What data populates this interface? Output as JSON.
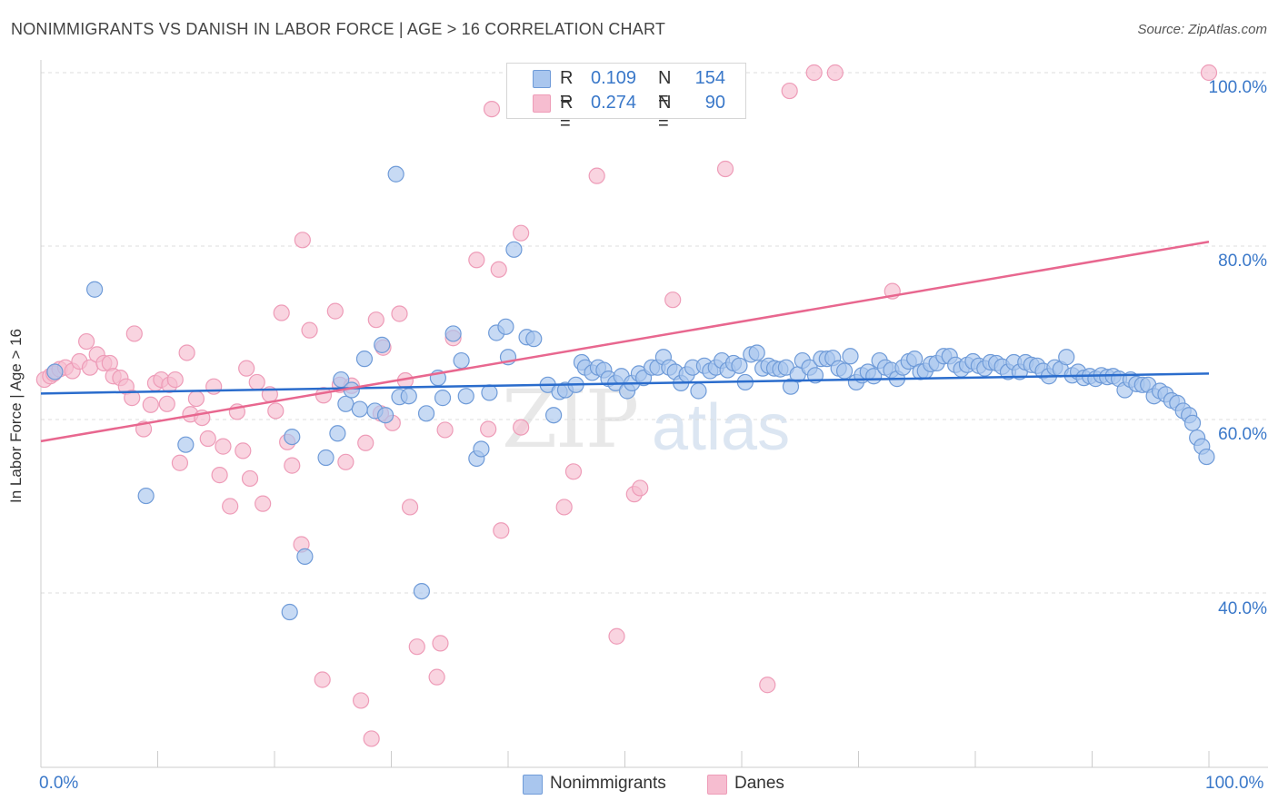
{
  "title": "NONIMMIGRANTS VS DANISH IN LABOR FORCE | AGE > 16 CORRELATION CHART",
  "source": "Source: ZipAtlas.com",
  "watermark": {
    "zip": "ZIP",
    "atlas": "atlas"
  },
  "legend": {
    "rows": [
      {
        "r_label": "R =",
        "r_value": "0.109",
        "n_label": "N =",
        "n_value": "154"
      },
      {
        "r_label": "R =",
        "r_value": "0.274",
        "n_label": "N =",
        "n_value": "90"
      }
    ]
  },
  "bottom_legend": [
    "Nonimmigrants",
    "Danes"
  ],
  "colors": {
    "blue_fill": "#a9c6ee",
    "blue_stroke": "#6f9bd8",
    "blue_line": "#2a6ccc",
    "pink_fill": "#f6bdd0",
    "pink_stroke": "#ee9cb8",
    "pink_line": "#e8678f",
    "tick_text": "#3a78c9",
    "grid": "#dddddd"
  },
  "chart_data": {
    "type": "scatter",
    "title": "NONIMMIGRANTS VS DANISH IN LABOR FORCE | AGE > 16 CORRELATION CHART",
    "ylabel": "In Labor Force | Age > 16",
    "xlim": [
      0,
      100
    ],
    "ylim": [
      20,
      102
    ],
    "x_ticks": [
      "0.0%",
      "100.0%"
    ],
    "y_ticks": [
      {
        "value": 100,
        "label": "100.0%"
      },
      {
        "value": 80,
        "label": "80.0%"
      },
      {
        "value": 60,
        "label": "60.0%"
      },
      {
        "value": 40,
        "label": "40.0%"
      }
    ],
    "grid": true,
    "series": [
      {
        "name": "Nonimmigrants",
        "r": 0.109,
        "n": 154,
        "trend": [
          [
            0,
            63.0
          ],
          [
            100,
            65.3
          ]
        ],
        "points": [
          [
            1.2,
            65.5
          ],
          [
            4.6,
            75.0
          ],
          [
            9,
            51.2
          ],
          [
            12.4,
            57.1
          ],
          [
            21.3,
            37.8
          ],
          [
            22.6,
            44.2
          ],
          [
            21.5,
            58.0
          ],
          [
            24.4,
            55.6
          ],
          [
            25.4,
            58.4
          ],
          [
            25.7,
            64.6
          ],
          [
            26.1,
            61.8
          ],
          [
            26.6,
            63.4
          ],
          [
            27.3,
            61.2
          ],
          [
            27.7,
            67.0
          ],
          [
            28.6,
            61.0
          ],
          [
            29.2,
            68.6
          ],
          [
            29.5,
            60.5
          ],
          [
            30.4,
            88.3
          ],
          [
            30.7,
            62.6
          ],
          [
            31.5,
            62.7
          ],
          [
            32.6,
            40.2
          ],
          [
            33,
            60.7
          ],
          [
            34,
            64.8
          ],
          [
            34.4,
            62.5
          ],
          [
            35.3,
            69.9
          ],
          [
            36,
            66.8
          ],
          [
            36.4,
            62.7
          ],
          [
            37.3,
            55.5
          ],
          [
            37.7,
            56.6
          ],
          [
            38.4,
            63.1
          ],
          [
            39,
            70.0
          ],
          [
            39.8,
            70.7
          ],
          [
            40.0,
            67.2
          ],
          [
            40.5,
            79.6
          ],
          [
            41.6,
            69.5
          ],
          [
            42.2,
            69.3
          ],
          [
            43.4,
            64.0
          ],
          [
            43.9,
            60.5
          ],
          [
            44.4,
            63.2
          ],
          [
            44.9,
            63.4
          ],
          [
            45.8,
            64.0
          ],
          [
            46.3,
            66.6
          ],
          [
            46.6,
            66.0
          ],
          [
            47.2,
            65.4
          ],
          [
            47.7,
            66.0
          ],
          [
            48.2,
            65.7
          ],
          [
            48.6,
            64.7
          ],
          [
            49.2,
            64.2
          ],
          [
            49.7,
            65.0
          ],
          [
            50.2,
            63.3
          ],
          [
            50.6,
            64.2
          ],
          [
            51.2,
            65.3
          ],
          [
            51.6,
            64.8
          ],
          [
            52.3,
            66.0
          ],
          [
            52.8,
            66.0
          ],
          [
            53.3,
            67.2
          ],
          [
            53.8,
            66.0
          ],
          [
            54.3,
            65.5
          ],
          [
            54.8,
            64.2
          ],
          [
            55.3,
            65.2
          ],
          [
            55.8,
            66.0
          ],
          [
            56.3,
            63.3
          ],
          [
            56.8,
            66.2
          ],
          [
            57.3,
            65.6
          ],
          [
            57.8,
            66.0
          ],
          [
            58.3,
            66.8
          ],
          [
            58.8,
            65.7
          ],
          [
            59.3,
            66.5
          ],
          [
            59.8,
            66.2
          ],
          [
            60.3,
            64.3
          ],
          [
            60.8,
            67.5
          ],
          [
            61.3,
            67.7
          ],
          [
            61.8,
            65.9
          ],
          [
            62.3,
            66.2
          ],
          [
            62.8,
            65.9
          ],
          [
            63.3,
            65.8
          ],
          [
            63.8,
            66.0
          ],
          [
            64.2,
            63.8
          ],
          [
            64.8,
            65.2
          ],
          [
            65.2,
            66.8
          ],
          [
            65.8,
            66.0
          ],
          [
            66.3,
            65.1
          ],
          [
            66.8,
            67.0
          ],
          [
            67.3,
            67.0
          ],
          [
            67.8,
            67.1
          ],
          [
            68.3,
            65.9
          ],
          [
            68.8,
            65.6
          ],
          [
            69.3,
            67.3
          ],
          [
            69.8,
            64.3
          ],
          [
            70.3,
            65.1
          ],
          [
            70.8,
            65.5
          ],
          [
            71.3,
            65.0
          ],
          [
            71.8,
            66.8
          ],
          [
            72.3,
            66.0
          ],
          [
            72.8,
            65.7
          ],
          [
            73.3,
            64.7
          ],
          [
            73.8,
            66.0
          ],
          [
            74.3,
            66.7
          ],
          [
            74.8,
            67.0
          ],
          [
            75.3,
            65.5
          ],
          [
            75.7,
            65.6
          ],
          [
            76.2,
            66.4
          ],
          [
            76.7,
            66.5
          ],
          [
            77.3,
            67.3
          ],
          [
            77.8,
            67.3
          ],
          [
            78.3,
            66.3
          ],
          [
            78.8,
            65.8
          ],
          [
            79.3,
            66.3
          ],
          [
            79.8,
            66.7
          ],
          [
            80.3,
            66.2
          ],
          [
            80.8,
            65.9
          ],
          [
            81.3,
            66.6
          ],
          [
            81.8,
            66.5
          ],
          [
            82.3,
            66.1
          ],
          [
            82.8,
            65.5
          ],
          [
            83.3,
            66.6
          ],
          [
            83.8,
            65.5
          ],
          [
            84.3,
            66.6
          ],
          [
            84.8,
            66.3
          ],
          [
            85.3,
            66.2
          ],
          [
            85.8,
            65.6
          ],
          [
            86.3,
            65.0
          ],
          [
            86.8,
            66.0
          ],
          [
            87.3,
            65.8
          ],
          [
            87.8,
            67.2
          ],
          [
            88.3,
            65.1
          ],
          [
            88.8,
            65.5
          ],
          [
            89.3,
            64.8
          ],
          [
            89.8,
            65.0
          ],
          [
            90.3,
            64.7
          ],
          [
            90.8,
            65.1
          ],
          [
            91.3,
            64.9
          ],
          [
            91.8,
            65.0
          ],
          [
            92.3,
            64.7
          ],
          [
            92.8,
            63.4
          ],
          [
            93.3,
            64.6
          ],
          [
            93.8,
            64.1
          ],
          [
            94.3,
            64.0
          ],
          [
            94.8,
            64.0
          ],
          [
            95.3,
            62.7
          ],
          [
            95.8,
            63.3
          ],
          [
            96.3,
            62.9
          ],
          [
            96.8,
            62.2
          ],
          [
            97.3,
            61.9
          ],
          [
            97.8,
            61.0
          ],
          [
            98.3,
            60.5
          ],
          [
            98.6,
            59.6
          ],
          [
            99.0,
            57.9
          ],
          [
            99.4,
            56.9
          ],
          [
            99.8,
            55.7
          ]
        ]
      },
      {
        "name": "Danes",
        "r": 0.274,
        "n": 90,
        "trend": [
          [
            0,
            57.5
          ],
          [
            100,
            80.5
          ]
        ],
        "points": [
          [
            0.3,
            64.6
          ],
          [
            0.8,
            65.0
          ],
          [
            1.1,
            65.3
          ],
          [
            1.6,
            65.8
          ],
          [
            2.1,
            66.0
          ],
          [
            2.7,
            65.6
          ],
          [
            3.3,
            66.7
          ],
          [
            3.9,
            69.0
          ],
          [
            4.2,
            66.0
          ],
          [
            4.8,
            67.5
          ],
          [
            5.4,
            66.5
          ],
          [
            5.9,
            66.5
          ],
          [
            6.2,
            65.0
          ],
          [
            6.8,
            64.8
          ],
          [
            7.3,
            63.8
          ],
          [
            7.8,
            62.5
          ],
          [
            8.0,
            69.9
          ],
          [
            8.8,
            58.9
          ],
          [
            9.4,
            61.7
          ],
          [
            9.8,
            64.2
          ],
          [
            10.3,
            64.6
          ],
          [
            10.8,
            61.8
          ],
          [
            11.0,
            64.0
          ],
          [
            11.5,
            64.6
          ],
          [
            11.9,
            55.0
          ],
          [
            12.5,
            67.7
          ],
          [
            12.8,
            60.6
          ],
          [
            13.3,
            62.4
          ],
          [
            13.8,
            60.2
          ],
          [
            14.3,
            57.8
          ],
          [
            14.8,
            63.8
          ],
          [
            15.3,
            53.6
          ],
          [
            15.6,
            56.9
          ],
          [
            16.2,
            50.0
          ],
          [
            16.8,
            60.9
          ],
          [
            17.3,
            56.4
          ],
          [
            17.6,
            65.9
          ],
          [
            17.9,
            53.2
          ],
          [
            18.5,
            64.3
          ],
          [
            19.0,
            50.3
          ],
          [
            19.6,
            62.9
          ],
          [
            20.1,
            61.0
          ],
          [
            20.6,
            72.3
          ],
          [
            21.1,
            57.4
          ],
          [
            21.5,
            54.7
          ],
          [
            22.3,
            45.6
          ],
          [
            22.4,
            80.7
          ],
          [
            23.0,
            70.3
          ],
          [
            24.1,
            30.0
          ],
          [
            24.2,
            62.8
          ],
          [
            25.2,
            72.5
          ],
          [
            25.6,
            64.0
          ],
          [
            26.1,
            55.1
          ],
          [
            26.6,
            63.9
          ],
          [
            27.4,
            27.6
          ],
          [
            27.8,
            57.3
          ],
          [
            28.3,
            23.2
          ],
          [
            28.7,
            71.5
          ],
          [
            29.1,
            60.7
          ],
          [
            29.3,
            68.3
          ],
          [
            30.1,
            59.6
          ],
          [
            30.7,
            72.2
          ],
          [
            31.2,
            64.5
          ],
          [
            31.6,
            49.9
          ],
          [
            32.2,
            33.8
          ],
          [
            33.9,
            30.3
          ],
          [
            34.2,
            34.2
          ],
          [
            34.6,
            58.8
          ],
          [
            35.3,
            69.4
          ],
          [
            37.3,
            78.4
          ],
          [
            38.3,
            58.9
          ],
          [
            38.6,
            95.8
          ],
          [
            39.2,
            77.3
          ],
          [
            39.4,
            47.2
          ],
          [
            41.1,
            81.5
          ],
          [
            41.1,
            59.1
          ],
          [
            44.8,
            49.9
          ],
          [
            45.6,
            54.0
          ],
          [
            47.6,
            88.1
          ],
          [
            49.3,
            35.0
          ],
          [
            50.8,
            51.4
          ],
          [
            51.3,
            52.1
          ],
          [
            54.1,
            73.8
          ],
          [
            58.6,
            88.9
          ],
          [
            62.2,
            29.4
          ],
          [
            64.1,
            97.9
          ],
          [
            66.2,
            100.0
          ],
          [
            68.0,
            100.0
          ],
          [
            72.9,
            74.8
          ],
          [
            100.0,
            100.0
          ]
        ]
      }
    ]
  }
}
